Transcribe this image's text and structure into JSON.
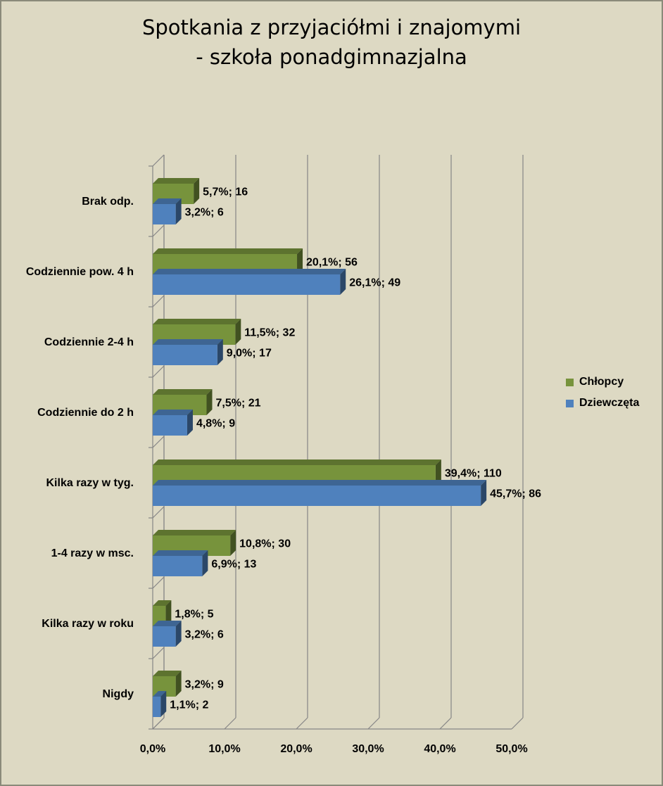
{
  "chart_data": {
    "type": "bar",
    "orientation": "horizontal",
    "title_line1": "Spotkania z przyjaciółmi i znajomymi",
    "title_line2": "- szkoła ponadgimnazjalna",
    "categories": [
      "Brak odp.",
      "Codziennie pow. 4 h",
      "Codziennie 2-4 h",
      "Codziennie do 2 h",
      "Kilka razy w tyg.",
      "1-4 razy w msc.",
      "Kilka razy w roku",
      "Nigdy"
    ],
    "series": [
      {
        "name": "Chłopcy",
        "color": "#77933c",
        "values": [
          5.7,
          20.1,
          11.5,
          7.5,
          39.4,
          10.8,
          1.8,
          3.2
        ],
        "labels": [
          "5,7%; 16",
          "20,1%; 56",
          "11,5%; 32",
          "7,5%; 21",
          "39,4%; 110",
          "10,8%; 30",
          "1,8%; 5",
          "3,2%; 9"
        ]
      },
      {
        "name": "Dziewczęta",
        "color": "#4f81bd",
        "values": [
          3.2,
          26.1,
          9.0,
          4.8,
          45.7,
          6.9,
          3.2,
          1.1
        ],
        "labels": [
          "3,2%; 6",
          "26,1%; 49",
          "9,0%; 17",
          "4,8%; 9",
          "45,7%; 86",
          "6,9%; 13",
          "3,2%; 6",
          "1,1%; 2"
        ]
      }
    ],
    "x_ticks": [
      "0,0%",
      "10,0%",
      "20,0%",
      "30,0%",
      "40,0%",
      "50,0%"
    ],
    "xlim": [
      0,
      50
    ],
    "grid": true,
    "legend_position": "right"
  }
}
